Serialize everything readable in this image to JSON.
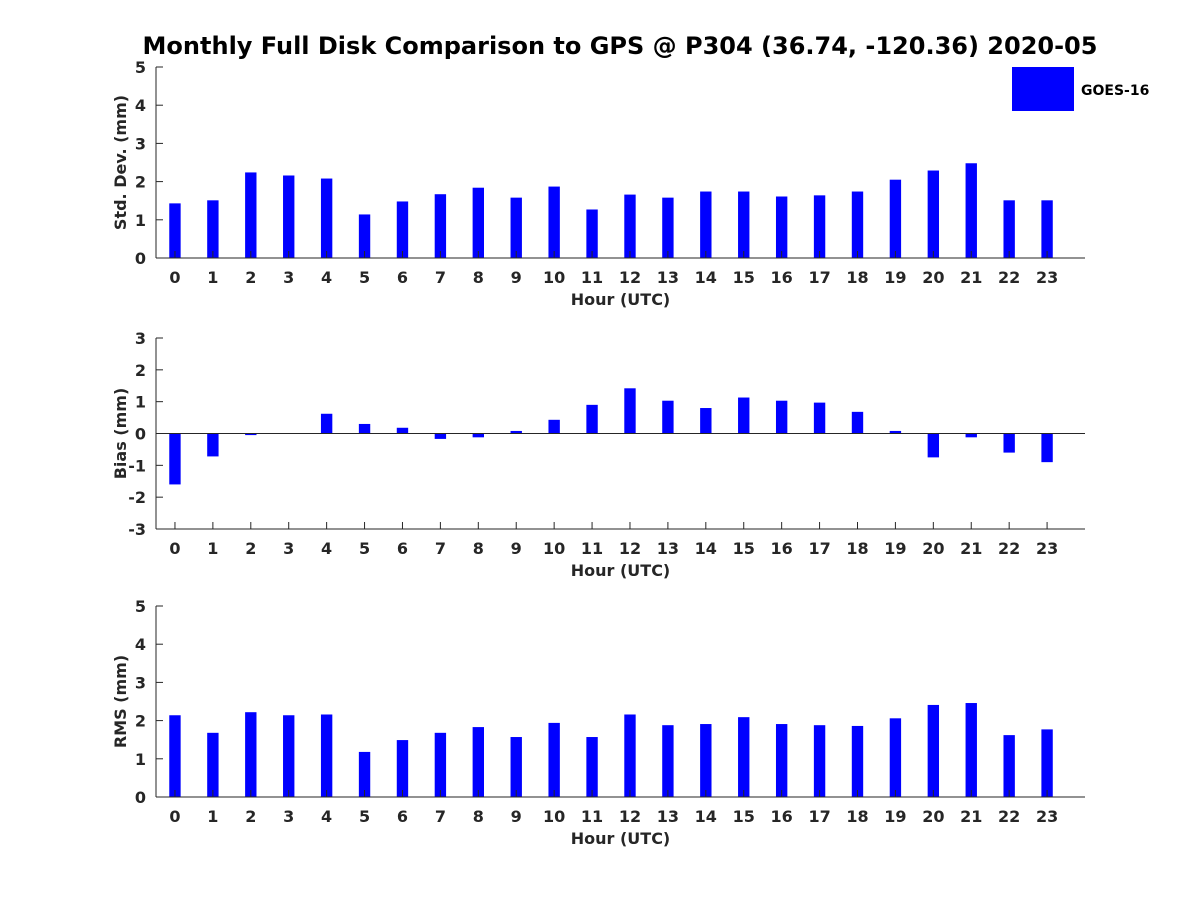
{
  "title": "Monthly Full Disk Comparison to GPS @ P304 (36.74, -120.36) 2020-05",
  "legend": {
    "label": "GOES-16",
    "color": "#0000ff",
    "placement": "top-right"
  },
  "chart_data": [
    {
      "type": "bar",
      "categories": [
        "0",
        "1",
        "2",
        "3",
        "4",
        "5",
        "6",
        "7",
        "8",
        "9",
        "10",
        "11",
        "12",
        "13",
        "14",
        "15",
        "16",
        "17",
        "18",
        "19",
        "20",
        "21",
        "22",
        "23"
      ],
      "series": [
        {
          "name": "GOES-16",
          "values": [
            1.43,
            1.51,
            2.24,
            2.16,
            2.08,
            1.14,
            1.48,
            1.67,
            1.84,
            1.58,
            1.87,
            1.27,
            1.66,
            1.58,
            1.74,
            1.74,
            1.61,
            1.64,
            1.74,
            2.05,
            2.29,
            2.48,
            1.51,
            1.51
          ]
        }
      ],
      "xlabel": "Hour (UTC)",
      "ylabel": "Std. Dev. (mm)",
      "ylim": [
        0,
        5
      ],
      "yticks": [
        0,
        1,
        2,
        3,
        4,
        5
      ],
      "grid": false
    },
    {
      "type": "bar",
      "categories": [
        "0",
        "1",
        "2",
        "3",
        "4",
        "5",
        "6",
        "7",
        "8",
        "9",
        "10",
        "11",
        "12",
        "13",
        "14",
        "15",
        "16",
        "17",
        "18",
        "19",
        "20",
        "21",
        "22",
        "23"
      ],
      "series": [
        {
          "name": "GOES-16",
          "values": [
            -1.6,
            -0.72,
            -0.05,
            0.0,
            0.62,
            0.3,
            0.18,
            -0.17,
            -0.12,
            0.08,
            0.43,
            0.9,
            1.42,
            1.03,
            0.8,
            1.13,
            1.03,
            0.97,
            0.68,
            0.08,
            -0.75,
            -0.12,
            -0.6,
            -0.9
          ]
        }
      ],
      "xlabel": "Hour (UTC)",
      "ylabel": "Bias (mm)",
      "ylim": [
        -3,
        3
      ],
      "yticks": [
        -3,
        -2,
        -1,
        0,
        1,
        2,
        3
      ],
      "grid": false
    },
    {
      "type": "bar",
      "categories": [
        "0",
        "1",
        "2",
        "3",
        "4",
        "5",
        "6",
        "7",
        "8",
        "9",
        "10",
        "11",
        "12",
        "13",
        "14",
        "15",
        "16",
        "17",
        "18",
        "19",
        "20",
        "21",
        "22",
        "23"
      ],
      "series": [
        {
          "name": "GOES-16",
          "values": [
            2.14,
            1.68,
            2.22,
            2.14,
            2.16,
            1.18,
            1.49,
            1.68,
            1.83,
            1.57,
            1.94,
            1.57,
            2.16,
            1.88,
            1.91,
            2.09,
            1.91,
            1.88,
            1.86,
            2.06,
            2.41,
            2.46,
            1.62,
            1.77
          ]
        }
      ],
      "xlabel": "Hour (UTC)",
      "ylabel": "RMS (mm)",
      "ylim": [
        0,
        5
      ],
      "yticks": [
        0,
        1,
        2,
        3,
        4,
        5
      ],
      "grid": false
    }
  ]
}
